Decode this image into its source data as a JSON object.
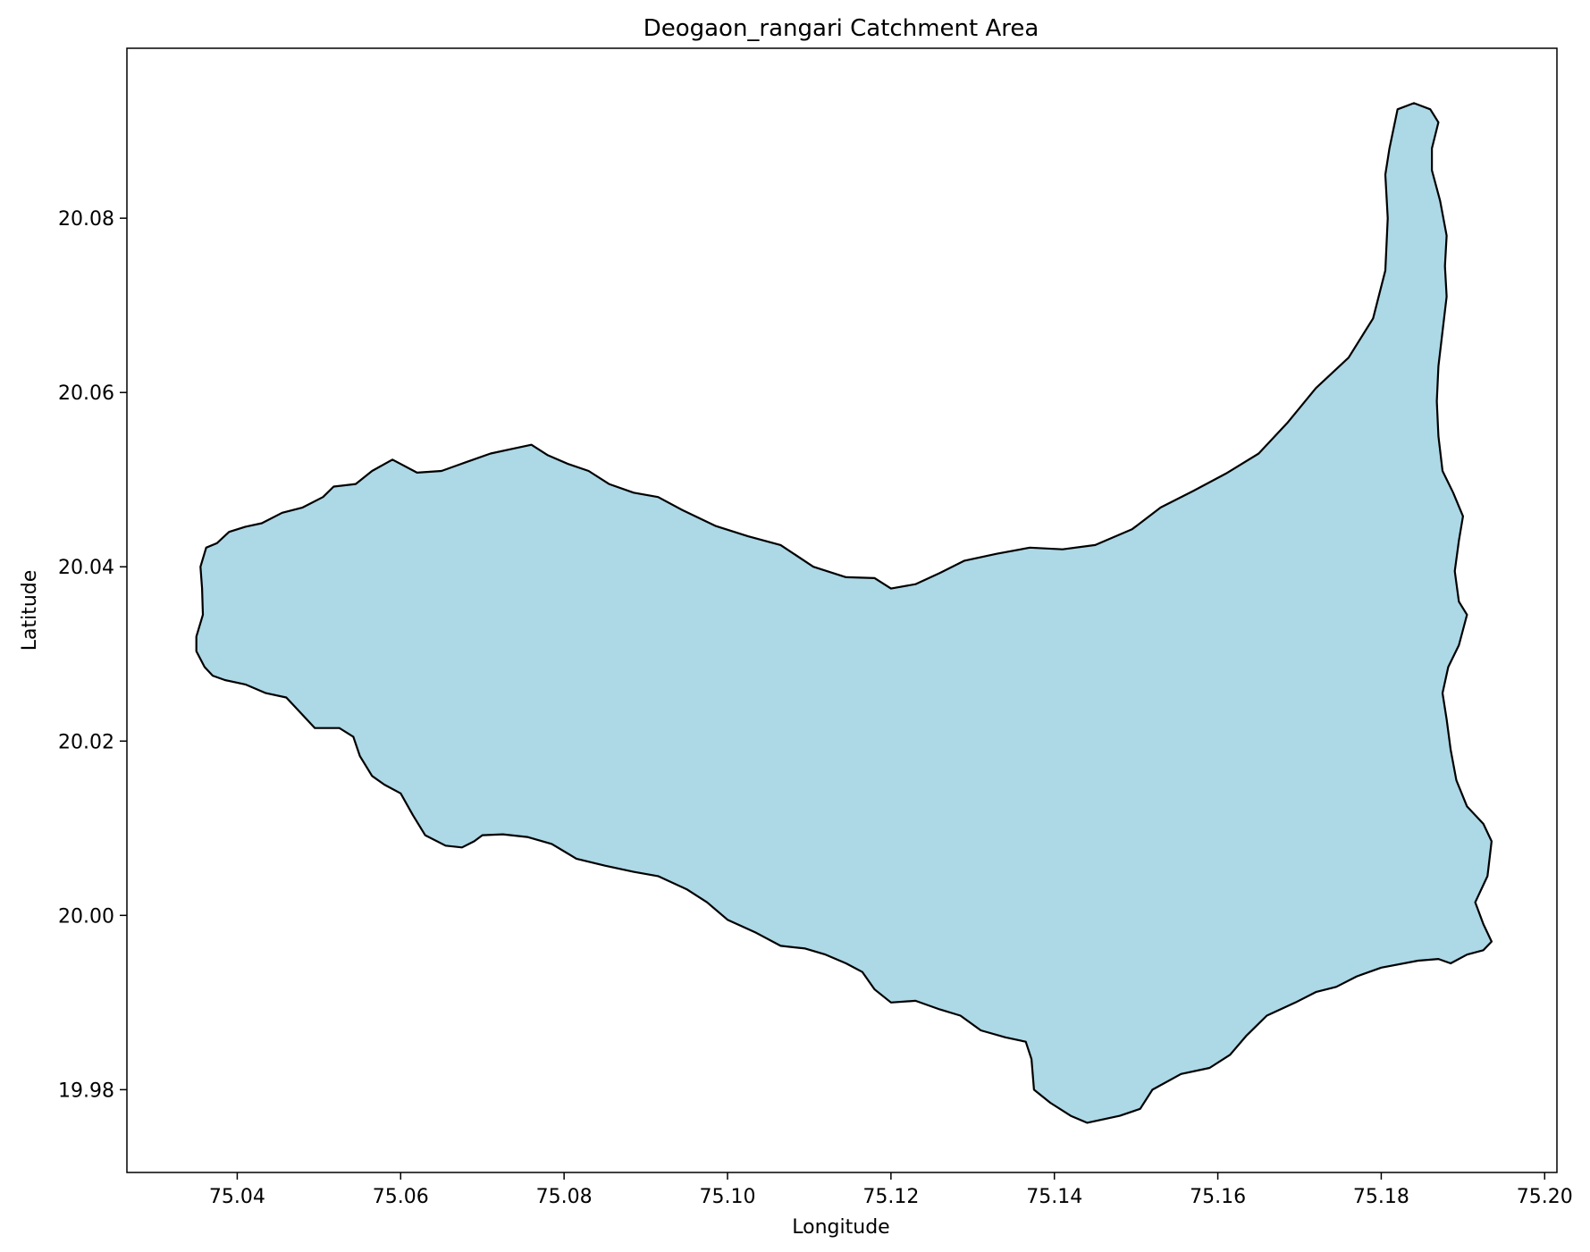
{
  "chart_data": {
    "type": "map",
    "title": "Deogaon_rangari Catchment Area",
    "xlabel": "Longitude",
    "ylabel": "Latitude",
    "xlim": [
      75.0265,
      75.2015
    ],
    "ylim": [
      19.9705,
      20.0995
    ],
    "xticks": [
      75.04,
      75.06,
      75.08,
      75.1,
      75.12,
      75.14,
      75.16,
      75.18,
      75.2
    ],
    "xtick_labels": [
      "75.04",
      "75.06",
      "75.08",
      "75.10",
      "75.12",
      "75.14",
      "75.16",
      "75.18",
      "75.20"
    ],
    "yticks": [
      19.98,
      20.0,
      20.02,
      20.04,
      20.06,
      20.08
    ],
    "ytick_labels": [
      "19.98",
      "20.00",
      "20.02",
      "20.04",
      "20.06",
      "20.08"
    ],
    "grid": false,
    "legend": null,
    "polygon_fill": "#add8e6",
    "polygon_edge": "#000000",
    "boundary": [
      [
        75.035,
        20.0303
      ],
      [
        75.035,
        20.032
      ],
      [
        75.0358,
        20.0345
      ],
      [
        75.0357,
        20.0375
      ],
      [
        75.0355,
        20.04
      ],
      [
        75.0362,
        20.0422
      ],
      [
        75.0375,
        20.0427
      ],
      [
        75.039,
        20.044
      ],
      [
        75.041,
        20.0446
      ],
      [
        75.043,
        20.045
      ],
      [
        75.0455,
        20.0462
      ],
      [
        75.048,
        20.0468
      ],
      [
        75.0505,
        20.048
      ],
      [
        75.0518,
        20.0492
      ],
      [
        75.0545,
        20.0495
      ],
      [
        75.0565,
        20.051
      ],
      [
        75.059,
        20.0523
      ],
      [
        75.062,
        20.0508
      ],
      [
        75.065,
        20.051
      ],
      [
        75.068,
        20.052
      ],
      [
        75.071,
        20.053
      ],
      [
        75.0735,
        20.0535
      ],
      [
        75.076,
        20.054
      ],
      [
        75.078,
        20.0528
      ],
      [
        75.0805,
        20.0518
      ],
      [
        75.083,
        20.051
      ],
      [
        75.0855,
        20.0495
      ],
      [
        75.0885,
        20.0485
      ],
      [
        75.0915,
        20.048
      ],
      [
        75.0945,
        20.0465
      ],
      [
        75.0985,
        20.0447
      ],
      [
        75.1025,
        20.0435
      ],
      [
        75.1065,
        20.0425
      ],
      [
        75.1105,
        20.04
      ],
      [
        75.1145,
        20.0388
      ],
      [
        75.118,
        20.0387
      ],
      [
        75.12,
        20.0375
      ],
      [
        75.123,
        20.038
      ],
      [
        75.126,
        20.0393
      ],
      [
        75.129,
        20.0407
      ],
      [
        75.133,
        20.0415
      ],
      [
        75.137,
        20.0422
      ],
      [
        75.141,
        20.042
      ],
      [
        75.145,
        20.0425
      ],
      [
        75.1495,
        20.0443
      ],
      [
        75.153,
        20.0468
      ],
      [
        75.157,
        20.0487
      ],
      [
        75.161,
        20.0507
      ],
      [
        75.165,
        20.053
      ],
      [
        75.1685,
        20.0565
      ],
      [
        75.172,
        20.0605
      ],
      [
        75.176,
        20.064
      ],
      [
        75.179,
        20.0685
      ],
      [
        75.1805,
        20.074
      ],
      [
        75.1808,
        20.08
      ],
      [
        75.1805,
        20.085
      ],
      [
        75.181,
        20.088
      ],
      [
        75.182,
        20.0925
      ],
      [
        75.184,
        20.0932
      ],
      [
        75.186,
        20.0925
      ],
      [
        75.187,
        20.091
      ],
      [
        75.1862,
        20.088
      ],
      [
        75.1862,
        20.0855
      ],
      [
        75.1872,
        20.082
      ],
      [
        75.188,
        20.078
      ],
      [
        75.1878,
        20.0745
      ],
      [
        75.188,
        20.071
      ],
      [
        75.1875,
        20.067
      ],
      [
        75.187,
        20.063
      ],
      [
        75.1868,
        20.059
      ],
      [
        75.187,
        20.055
      ],
      [
        75.1875,
        20.051
      ],
      [
        75.1888,
        20.0485
      ],
      [
        75.19,
        20.0458
      ],
      [
        75.1895,
        20.043
      ],
      [
        75.189,
        20.0395
      ],
      [
        75.1895,
        20.036
      ],
      [
        75.1905,
        20.0345
      ],
      [
        75.1895,
        20.031
      ],
      [
        75.1882,
        20.0285
      ],
      [
        75.1875,
        20.0255
      ],
      [
        75.188,
        20.0225
      ],
      [
        75.1885,
        20.019
      ],
      [
        75.1892,
        20.0155
      ],
      [
        75.1905,
        20.0125
      ],
      [
        75.1925,
        20.0105
      ],
      [
        75.1935,
        20.0085
      ],
      [
        75.193,
        20.0045
      ],
      [
        75.1915,
        20.0015
      ],
      [
        75.1925,
        19.999
      ],
      [
        75.1935,
        19.997
      ],
      [
        75.1925,
        19.996
      ],
      [
        75.1905,
        19.9955
      ],
      [
        75.1885,
        19.9945
      ],
      [
        75.187,
        19.995
      ],
      [
        75.1845,
        19.9948
      ],
      [
        75.18,
        19.994
      ],
      [
        75.177,
        19.993
      ],
      [
        75.1745,
        19.9918
      ],
      [
        75.172,
        19.9912
      ],
      [
        75.1695,
        19.99
      ],
      [
        75.166,
        19.9885
      ],
      [
        75.1635,
        19.9862
      ],
      [
        75.1615,
        19.984
      ],
      [
        75.159,
        19.9825
      ],
      [
        75.1555,
        19.9818
      ],
      [
        75.152,
        19.98
      ],
      [
        75.1505,
        19.9778
      ],
      [
        75.148,
        19.977
      ],
      [
        75.144,
        19.9762
      ],
      [
        75.142,
        19.977
      ],
      [
        75.1395,
        19.9785
      ],
      [
        75.1375,
        19.98
      ],
      [
        75.1372,
        19.9835
      ],
      [
        75.1365,
        19.9855
      ],
      [
        75.134,
        19.986
      ],
      [
        75.131,
        19.9868
      ],
      [
        75.1285,
        19.9885
      ],
      [
        75.126,
        19.9892
      ],
      [
        75.123,
        19.9902
      ],
      [
        75.12,
        19.99
      ],
      [
        75.118,
        19.9915
      ],
      [
        75.1165,
        19.9935
      ],
      [
        75.1145,
        19.9945
      ],
      [
        75.112,
        19.9955
      ],
      [
        75.1095,
        19.9962
      ],
      [
        75.1065,
        19.9965
      ],
      [
        75.1035,
        19.998
      ],
      [
        75.1,
        19.9995
      ],
      [
        75.0975,
        20.0015
      ],
      [
        75.095,
        20.003
      ],
      [
        75.0915,
        20.0045
      ],
      [
        75.0885,
        20.005
      ],
      [
        75.085,
        20.0057
      ],
      [
        75.0815,
        20.0065
      ],
      [
        75.0785,
        20.0082
      ],
      [
        75.0755,
        20.009
      ],
      [
        75.0725,
        20.0093
      ],
      [
        75.07,
        20.0092
      ],
      [
        75.069,
        20.0085
      ],
      [
        75.0675,
        20.0078
      ],
      [
        75.0655,
        20.008
      ],
      [
        75.063,
        20.0092
      ],
      [
        75.0615,
        20.0115
      ],
      [
        75.06,
        20.014
      ],
      [
        75.058,
        20.015
      ],
      [
        75.0565,
        20.016
      ],
      [
        75.055,
        20.0183
      ],
      [
        75.0542,
        20.0205
      ],
      [
        75.0525,
        20.0215
      ],
      [
        75.0495,
        20.0215
      ],
      [
        75.0475,
        20.0235
      ],
      [
        75.046,
        20.025
      ],
      [
        75.0435,
        20.0255
      ],
      [
        75.041,
        20.0265
      ],
      [
        75.0385,
        20.027
      ],
      [
        75.037,
        20.0275
      ],
      [
        75.036,
        20.0285
      ]
    ]
  }
}
